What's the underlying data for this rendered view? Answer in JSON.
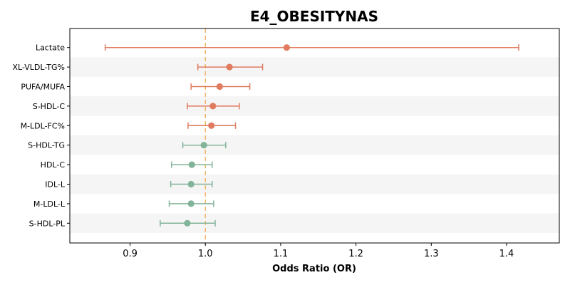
{
  "chart_data": {
    "type": "forest",
    "title": "E4_OBESITYNAS",
    "xlabel": "Odds Ratio (OR)",
    "xlim": [
      0.82,
      1.47
    ],
    "xticks": [
      0.9,
      1.0,
      1.1,
      1.2,
      1.3,
      1.4
    ],
    "xtick_labels": [
      "0.9",
      "1.0",
      "1.1",
      "1.2",
      "1.3",
      "1.4"
    ],
    "reference_line": 1.0,
    "grid": false,
    "colors": {
      "positive": "#e07b5f",
      "negative": "#82b49a",
      "reference": "#f4b76b",
      "band": "#f5f5f5"
    },
    "rows": [
      {
        "label": "Lactate",
        "or": 1.108,
        "lo": 0.867,
        "hi": 1.416,
        "group": "positive"
      },
      {
        "label": "XL-VLDL-TG%",
        "or": 1.032,
        "lo": 0.99,
        "hi": 1.076,
        "group": "positive"
      },
      {
        "label": "PUFA/MUFA",
        "or": 1.019,
        "lo": 0.981,
        "hi": 1.059,
        "group": "positive"
      },
      {
        "label": "S-HDL-C",
        "or": 1.01,
        "lo": 0.976,
        "hi": 1.045,
        "group": "positive"
      },
      {
        "label": "M-LDL-FC%",
        "or": 1.008,
        "lo": 0.977,
        "hi": 1.04,
        "group": "positive"
      },
      {
        "label": "S-HDL-TG",
        "or": 0.998,
        "lo": 0.97,
        "hi": 1.027,
        "group": "negative"
      },
      {
        "label": "HDL-C",
        "or": 0.982,
        "lo": 0.955,
        "hi": 1.009,
        "group": "negative"
      },
      {
        "label": "IDL-L",
        "or": 0.981,
        "lo": 0.954,
        "hi": 1.009,
        "group": "negative"
      },
      {
        "label": "M-LDL-L",
        "or": 0.981,
        "lo": 0.952,
        "hi": 1.011,
        "group": "negative"
      },
      {
        "label": "S-HDL-PL",
        "or": 0.976,
        "lo": 0.94,
        "hi": 1.013,
        "group": "negative"
      }
    ]
  }
}
